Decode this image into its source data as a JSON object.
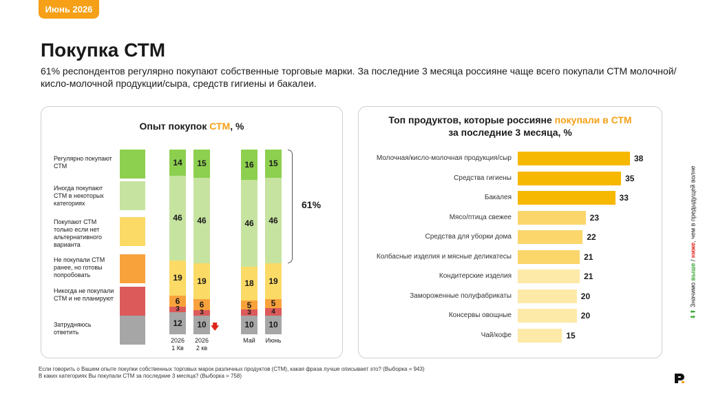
{
  "header": {
    "date_badge": "Июнь 2026",
    "title": "Покупка СТМ",
    "subtitle": "61% респондентов регулярно покупают собственные торговые марки. За последние 3 месяца россияне чаще всего покупали СТМ молочной/кисло-молочной продукции/сыра, средств гигиены и бакалеи."
  },
  "left_panel": {
    "title_prefix": "Опыт покупок ",
    "title_highlight": "СТМ",
    "title_suffix": ", %",
    "bracket_label": "61%",
    "change_marker": "decrease-arrow-icon"
  },
  "right_panel": {
    "title_line1_prefix": "Топ продуктов, которые россияне ",
    "title_line1_highlight": "покупали в СТМ",
    "title_line2": "за последние 3 месяца, %"
  },
  "colors": {
    "accent": "#f5a017",
    "regular": "#8dcf4f",
    "sometimes": "#c6e3a0",
    "only_if_none": "#fbda66",
    "ready_to_try": "#f8a23c",
    "never": "#dc5a5a",
    "hard_to_say": "#a6a6a6",
    "bar_dark": "#f7b801",
    "bar_mid": "#fbd66b",
    "bar_light": "#fde9a8",
    "up": "#3aa636",
    "down": "#e0241b"
  },
  "chart_data": [
    {
      "type": "bar",
      "stacked": true,
      "title": "Опыт покупок СТМ, %",
      "categories": [
        "2026 1 Кв",
        "2026 2 кв",
        "Май",
        "Июнь"
      ],
      "category_labels": [
        [
          "2026",
          "1 Кв"
        ],
        [
          "2026",
          "2 кв"
        ],
        [
          "Май",
          ""
        ],
        [
          "Июнь",
          ""
        ]
      ],
      "series": [
        {
          "name": "Регулярно покупают СТМ",
          "values": [
            14,
            15,
            16,
            15
          ]
        },
        {
          "name": "Иногда покупают СТМ в некоторых категориях",
          "values": [
            46,
            46,
            46,
            46
          ]
        },
        {
          "name": "Покупают СТМ только если нет альтернативного варианта",
          "values": [
            19,
            19,
            18,
            19
          ]
        },
        {
          "name": "Не покупали СТМ ранее, но готовы попробовать",
          "values": [
            6,
            6,
            5,
            5
          ]
        },
        {
          "name": "Никогда не покупали СТМ и не планируют",
          "values": [
            3,
            3,
            3,
            4
          ]
        },
        {
          "name": "Затрудняюсь ответить",
          "values": [
            12,
            10,
            10,
            10
          ]
        }
      ],
      "annotation": "61%",
      "ylim": [
        0,
        100
      ]
    },
    {
      "type": "bar",
      "orientation": "horizontal",
      "title": "Топ продуктов, которые россияне покупали в СТМ за последние 3 месяца, %",
      "categories": [
        "Молочная/кисло-молочная продукция/сыр",
        "Средства гигиены",
        "Бакалея",
        "Мясо/птица свежее",
        "Средства для уборки дома",
        "Колбасные изделия и мясные деликатесы",
        "Кондитерские изделия",
        "Замороженные полуфабрикаты",
        "Консервы овощные",
        "Чай/кофе"
      ],
      "values": [
        38,
        35,
        33,
        23,
        22,
        21,
        21,
        20,
        20,
        15
      ],
      "xlim": [
        0,
        38
      ]
    }
  ],
  "footnotes": [
    "Если говорить о Вашем опыте покупки собственных торговых марок различных продуктов (СТМ), какая фраза лучше описывает это? (Выборка = 943)",
    "В каких категориях Вы покупали СТМ за последние 3 месяца? (Выборка = 758)"
  ],
  "side_note": {
    "prefix": "Значимо ",
    "up_word": "выше",
    "separator": " / ",
    "down_word": "ниже",
    "suffix": ", чем в предыдущей волне",
    "up_icon": "up-arrow-icon",
    "down_icon": "down-arrow-icon"
  },
  "logo_icon": "brand-logo-icon"
}
